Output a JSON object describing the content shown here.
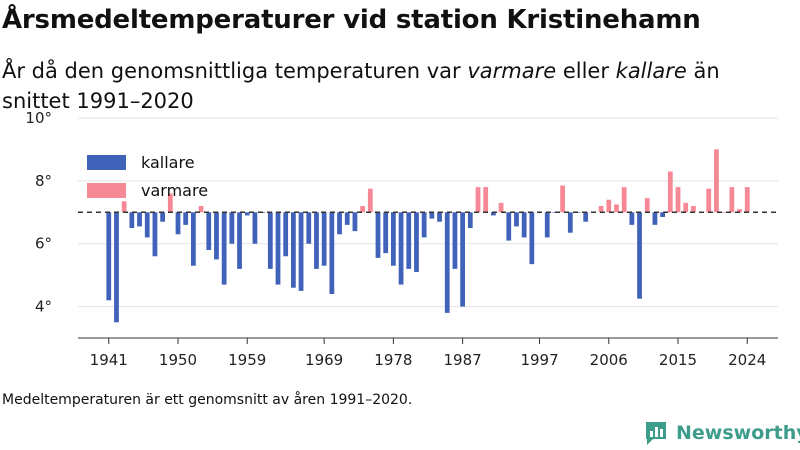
{
  "header": {
    "title": "Årsmedeltemperaturer vid station Kristinehamn",
    "subtitle_pre": "År då den genomsnittliga temperaturen var ",
    "subtitle_em1": "varmare",
    "subtitle_mid": " eller ",
    "subtitle_em2": "kallare",
    "subtitle_post": " än snittet 1991–2020"
  },
  "footer": {
    "note": "Medeltemperaturen är ett genomsnitt av åren 1991–2020.",
    "brand": "Newsworthy"
  },
  "colors": {
    "colder": "#4063b9",
    "warmer": "#f78896",
    "brand": "#3d9c8a"
  },
  "chart_data": {
    "type": "bar",
    "baseline": 7.0,
    "ylim": [
      3.0,
      10.0
    ],
    "y_ticks": [
      4,
      6,
      8,
      10
    ],
    "y_tick_labels": [
      "4°",
      "6°",
      "8°",
      "10°"
    ],
    "x_ticks": [
      1941,
      1950,
      1959,
      1969,
      1978,
      1987,
      1997,
      2006,
      2015,
      2024
    ],
    "x_tick_labels": [
      "1941",
      "1950",
      "1959",
      "1969",
      "1978",
      "1987",
      "1997",
      "2006",
      "2015",
      "2024"
    ],
    "legend": [
      {
        "label": "kallare",
        "color": "#4063b9"
      },
      {
        "label": "varmare",
        "color": "#f78896"
      }
    ],
    "x": [
      1941,
      1942,
      1943,
      1944,
      1945,
      1946,
      1947,
      1948,
      1949,
      1950,
      1951,
      1952,
      1953,
      1954,
      1955,
      1956,
      1957,
      1958,
      1959,
      1960,
      1961,
      1962,
      1963,
      1964,
      1965,
      1966,
      1967,
      1968,
      1969,
      1970,
      1971,
      1972,
      1973,
      1974,
      1975,
      1976,
      1977,
      1978,
      1979,
      1980,
      1981,
      1982,
      1983,
      1984,
      1985,
      1986,
      1987,
      1988,
      1989,
      1990,
      1991,
      1992,
      1993,
      1994,
      1995,
      1996,
      1997,
      1998,
      1999,
      2000,
      2001,
      2002,
      2003,
      2004,
      2005,
      2006,
      2007,
      2008,
      2009,
      2010,
      2011,
      2012,
      2013,
      2014,
      2015,
      2016,
      2017,
      2018,
      2019,
      2020,
      2021,
      2022,
      2023,
      2024
    ],
    "values": [
      4.2,
      3.5,
      7.35,
      6.5,
      6.55,
      6.2,
      5.6,
      6.7,
      7.6,
      6.3,
      6.6,
      5.3,
      7.2,
      5.8,
      5.5,
      4.7,
      6.0,
      5.2,
      6.9,
      6.0,
      6.99,
      5.2,
      4.7,
      5.6,
      4.6,
      4.5,
      6.0,
      5.2,
      5.3,
      4.4,
      6.3,
      6.6,
      6.4,
      7.2,
      7.75,
      5.55,
      5.7,
      5.3,
      4.7,
      5.2,
      5.1,
      6.2,
      6.8,
      6.7,
      3.8,
      5.2,
      4.0,
      6.5,
      7.8,
      7.8,
      6.9,
      7.3,
      6.1,
      6.55,
      6.2,
      5.35,
      6.99,
      6.2,
      6.99,
      7.85,
      6.35,
      6.99,
      6.7,
      6.99,
      7.2,
      7.4,
      7.25,
      7.8,
      6.6,
      4.25,
      7.45,
      6.6,
      6.85,
      8.3,
      7.8,
      7.3,
      7.2,
      7.0,
      7.75,
      9.0,
      7.0,
      7.8,
      7.1,
      7.8
    ]
  }
}
